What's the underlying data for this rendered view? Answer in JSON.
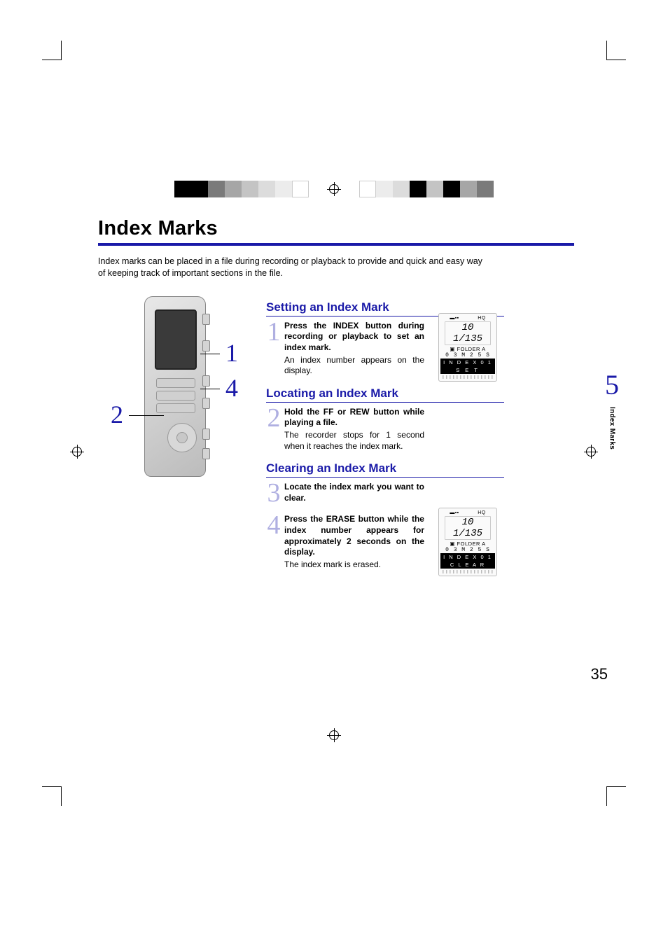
{
  "page": {
    "title": "Index Marks",
    "intro": "Index marks can be placed in a file during recording or playback to provide and quick and easy way of keeping track of important sections in the file.",
    "page_number": "35"
  },
  "chapter": {
    "number": "5",
    "label": "Index Marks"
  },
  "callouts": {
    "c1": "1",
    "c2": "2",
    "c4": "4"
  },
  "sections": {
    "setting": {
      "heading": "Setting an Index Mark",
      "step1_num": "1",
      "step1_bold_a": "Press the ",
      "step1_bold_button": "INDEX",
      "step1_bold_b": " button during recording or playback to set an index mark.",
      "step1_plain": "An index number appears on the display."
    },
    "locating": {
      "heading": "Locating an Index Mark",
      "step2_num": "2",
      "step2_bold_a": "Hold the ",
      "step2_bold_btn1": "FF",
      "step2_bold_mid": " or ",
      "step2_bold_btn2": "REW",
      "step2_bold_b": " button while playing a file.",
      "step2_plain": "The recorder stops for 1 second when it reaches the index mark."
    },
    "clearing": {
      "heading": "Clearing an Index Mark",
      "step3_num": "3",
      "step3_bold": "Locate the index mark you want to clear.",
      "step4_num": "4",
      "step4_bold_a": "Press the ",
      "step4_bold_button": "ERASE",
      "step4_bold_b": " button while the index number appears for approximately 2 seconds on the display.",
      "step4_plain": "The index mark is erased."
    }
  },
  "lcd": {
    "battery": "▬▪▪",
    "hq": "HQ",
    "counter": "10 1/135",
    "folder_icon": "▣",
    "folder": "FOLDER A",
    "time": "0 3 M 2 5 S",
    "index_row": "I N D E X   0 1",
    "set_row": "S E T",
    "clear_row": "C L E A R"
  },
  "colors": {
    "accent": "#1a1aa8",
    "step_num": "rgba(26,26,168,0.35)",
    "colorbar_left": [
      "#000000",
      "#000000",
      "#7a7a7a",
      "#a6a6a6",
      "#c4c4c4",
      "#dcdcdc",
      "#ececec",
      "#ffffff"
    ],
    "colorbar_right": [
      "#ffffff",
      "#ececec",
      "#dcdcdc",
      "#000000",
      "#c4c4c4",
      "#000000",
      "#a6a6a6",
      "#7a7a7a"
    ]
  }
}
